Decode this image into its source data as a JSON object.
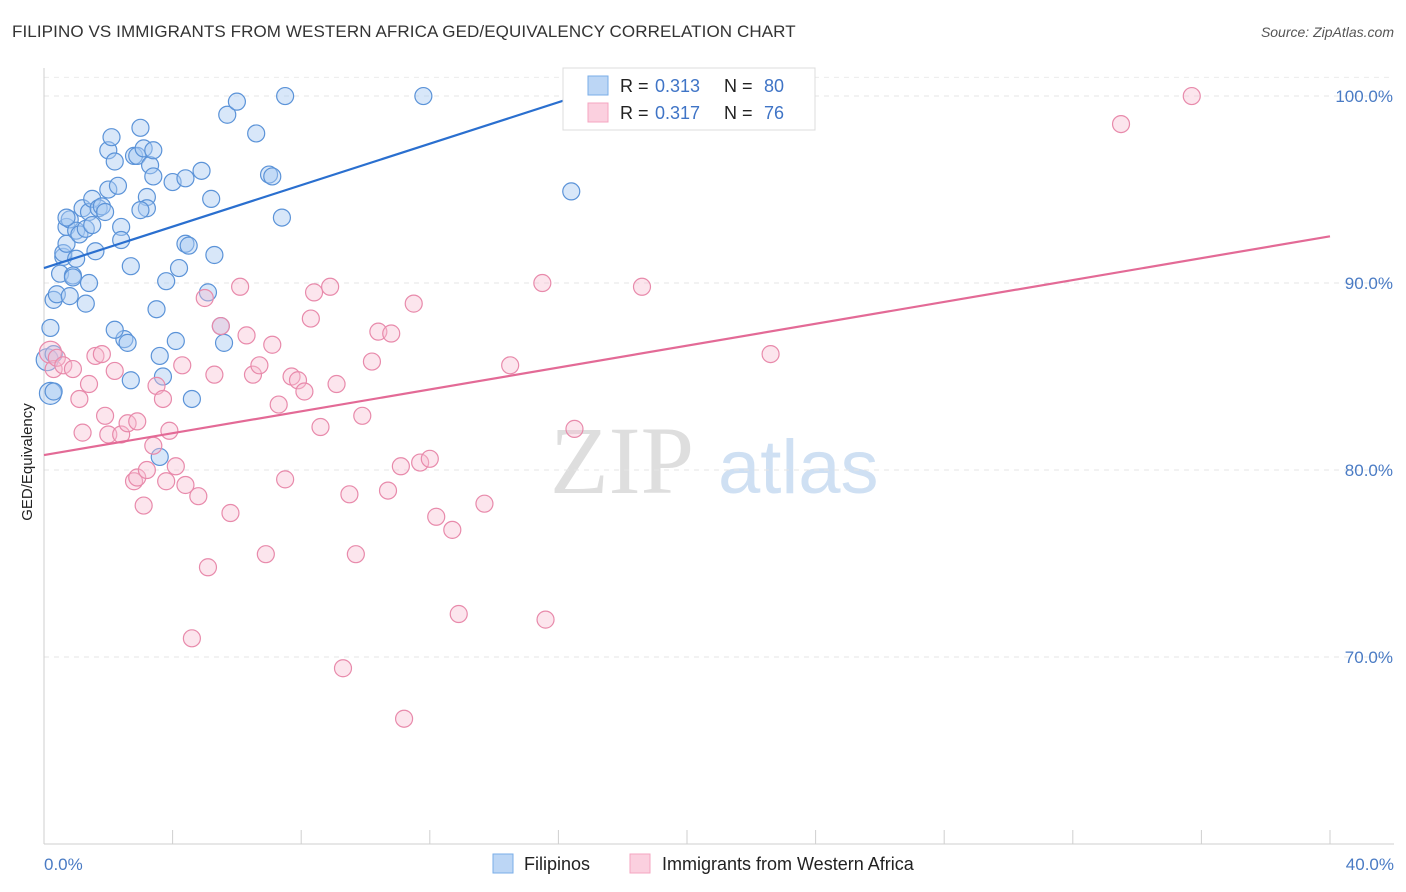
{
  "title": "FILIPINO VS IMMIGRANTS FROM WESTERN AFRICA GED/EQUIVALENCY CORRELATION CHART",
  "source": "Source: ZipAtlas.com",
  "watermark": {
    "zip": "ZIP",
    "atlas": "atlas"
  },
  "chart_data": {
    "type": "scatter",
    "xlabel": "",
    "ylabel": "GED/Equivalency",
    "xlim": [
      0,
      40
    ],
    "ylim": [
      60,
      101.5
    ],
    "x_tick_labels": [
      "0.0%",
      "40.0%"
    ],
    "y_ticks": [
      70,
      80,
      90,
      100
    ],
    "y_tick_labels": [
      "70.0%",
      "80.0%",
      "90.0%",
      "100.0%"
    ],
    "grid": true,
    "legend": [
      {
        "name": "Filipinos",
        "r_label": "R =",
        "r_value": "0.313",
        "n_label": "N =",
        "n_value": "80",
        "color": "#7aaee8"
      },
      {
        "name": "Immigrants from Western Africa",
        "r_label": "R =",
        "r_value": "0.317",
        "n_label": "N =",
        "n_value": "76",
        "color": "#f4a6c0"
      }
    ],
    "series": [
      {
        "name": "Filipinos",
        "color": "#7aaee8",
        "stroke": "#5b93d8",
        "trend": {
          "x": [
            0,
            17.5
          ],
          "y": [
            90.8,
            100.5
          ],
          "color": "#2a6fcf"
        },
        "points": [
          [
            0.1,
            85.9
          ],
          [
            0.2,
            84.1
          ],
          [
            0.2,
            87.6
          ],
          [
            0.3,
            89.1
          ],
          [
            0.3,
            84.2
          ],
          [
            0.3,
            86.2
          ],
          [
            0.4,
            89.4
          ],
          [
            0.5,
            90.5
          ],
          [
            0.6,
            91.4
          ],
          [
            0.6,
            91.6
          ],
          [
            0.7,
            92.1
          ],
          [
            0.7,
            93.0
          ],
          [
            0.8,
            93.4
          ],
          [
            0.8,
            89.3
          ],
          [
            0.9,
            90.4
          ],
          [
            1.0,
            92.8
          ],
          [
            1.0,
            91.3
          ],
          [
            1.1,
            92.6
          ],
          [
            1.2,
            94.0
          ],
          [
            1.3,
            92.9
          ],
          [
            1.4,
            93.8
          ],
          [
            1.4,
            90.0
          ],
          [
            1.5,
            93.1
          ],
          [
            1.5,
            94.5
          ],
          [
            1.6,
            91.7
          ],
          [
            1.7,
            94.0
          ],
          [
            1.8,
            94.1
          ],
          [
            1.9,
            93.8
          ],
          [
            2.0,
            95.0
          ],
          [
            2.0,
            97.1
          ],
          [
            2.1,
            97.8
          ],
          [
            2.2,
            96.5
          ],
          [
            2.3,
            95.2
          ],
          [
            2.4,
            93.0
          ],
          [
            2.4,
            92.3
          ],
          [
            2.5,
            87.0
          ],
          [
            2.6,
            86.8
          ],
          [
            2.7,
            90.9
          ],
          [
            2.7,
            84.8
          ],
          [
            2.8,
            96.8
          ],
          [
            2.9,
            96.8
          ],
          [
            3.0,
            98.3
          ],
          [
            3.1,
            97.2
          ],
          [
            3.2,
            94.6
          ],
          [
            3.2,
            94.0
          ],
          [
            3.3,
            96.3
          ],
          [
            3.4,
            97.1
          ],
          [
            3.4,
            95.7
          ],
          [
            3.5,
            88.6
          ],
          [
            3.6,
            80.7
          ],
          [
            3.6,
            86.1
          ],
          [
            3.7,
            85.0
          ],
          [
            3.8,
            90.1
          ],
          [
            4.0,
            95.4
          ],
          [
            4.1,
            86.9
          ],
          [
            4.2,
            90.8
          ],
          [
            4.4,
            92.1
          ],
          [
            4.4,
            95.6
          ],
          [
            4.5,
            92.0
          ],
          [
            4.6,
            83.8
          ],
          [
            4.9,
            96.0
          ],
          [
            5.1,
            89.5
          ],
          [
            5.3,
            91.5
          ],
          [
            5.5,
            87.7
          ],
          [
            5.6,
            86.8
          ],
          [
            5.7,
            99.0
          ],
          [
            6.0,
            99.7
          ],
          [
            6.6,
            98.0
          ],
          [
            7.0,
            95.8
          ],
          [
            7.1,
            95.7
          ],
          [
            7.4,
            93.5
          ],
          [
            7.5,
            100.0
          ],
          [
            11.8,
            100.0
          ],
          [
            16.4,
            94.9
          ],
          [
            2.2,
            87.5
          ],
          [
            1.3,
            88.9
          ],
          [
            0.9,
            90.3
          ],
          [
            0.7,
            93.5
          ],
          [
            5.2,
            94.5
          ],
          [
            3.0,
            93.9
          ]
        ]
      },
      {
        "name": "Immigrants from Western Africa",
        "color": "#f4a6c0",
        "stroke": "#e88aab",
        "trend": {
          "x": [
            0,
            40
          ],
          "y": [
            80.8,
            92.5
          ],
          "color": "#e36a96"
        },
        "points": [
          [
            0.2,
            86.3
          ],
          [
            0.3,
            85.4
          ],
          [
            0.4,
            86.0
          ],
          [
            0.6,
            85.6
          ],
          [
            0.9,
            85.4
          ],
          [
            1.1,
            83.8
          ],
          [
            1.2,
            82.0
          ],
          [
            1.4,
            84.6
          ],
          [
            1.6,
            86.1
          ],
          [
            1.8,
            86.2
          ],
          [
            1.9,
            82.9
          ],
          [
            2.0,
            81.9
          ],
          [
            2.2,
            85.3
          ],
          [
            2.4,
            81.9
          ],
          [
            2.6,
            82.5
          ],
          [
            2.8,
            79.4
          ],
          [
            2.9,
            79.6
          ],
          [
            3.1,
            78.1
          ],
          [
            3.2,
            80.0
          ],
          [
            3.4,
            81.3
          ],
          [
            3.5,
            84.5
          ],
          [
            3.7,
            83.8
          ],
          [
            3.8,
            79.4
          ],
          [
            3.9,
            82.1
          ],
          [
            4.1,
            80.2
          ],
          [
            4.3,
            85.6
          ],
          [
            4.4,
            79.2
          ],
          [
            4.6,
            71.0
          ],
          [
            4.8,
            78.6
          ],
          [
            5.0,
            89.2
          ],
          [
            5.1,
            74.8
          ],
          [
            5.3,
            85.1
          ],
          [
            5.5,
            87.7
          ],
          [
            5.8,
            77.7
          ],
          [
            6.1,
            89.8
          ],
          [
            6.3,
            87.2
          ],
          [
            6.5,
            85.1
          ],
          [
            6.7,
            85.6
          ],
          [
            6.9,
            75.5
          ],
          [
            7.1,
            86.7
          ],
          [
            7.3,
            83.5
          ],
          [
            7.5,
            79.5
          ],
          [
            7.7,
            85.0
          ],
          [
            7.9,
            84.8
          ],
          [
            8.1,
            84.2
          ],
          [
            8.3,
            88.1
          ],
          [
            8.4,
            89.5
          ],
          [
            8.6,
            82.3
          ],
          [
            8.9,
            89.8
          ],
          [
            9.1,
            84.6
          ],
          [
            9.3,
            69.4
          ],
          [
            9.5,
            78.7
          ],
          [
            9.7,
            75.5
          ],
          [
            9.9,
            82.9
          ],
          [
            10.2,
            85.8
          ],
          [
            10.4,
            87.4
          ],
          [
            10.7,
            78.9
          ],
          [
            10.8,
            87.3
          ],
          [
            11.1,
            80.2
          ],
          [
            11.2,
            66.7
          ],
          [
            11.5,
            88.9
          ],
          [
            11.7,
            80.4
          ],
          [
            12.0,
            80.6
          ],
          [
            12.2,
            77.5
          ],
          [
            12.7,
            76.8
          ],
          [
            12.9,
            72.3
          ],
          [
            13.7,
            78.2
          ],
          [
            14.5,
            85.6
          ],
          [
            15.5,
            90.0
          ],
          [
            15.6,
            72.0
          ],
          [
            16.5,
            82.2
          ],
          [
            18.6,
            89.8
          ],
          [
            22.6,
            86.2
          ],
          [
            33.5,
            98.5
          ],
          [
            35.7,
            100.0
          ],
          [
            2.9,
            82.6
          ]
        ]
      }
    ]
  }
}
